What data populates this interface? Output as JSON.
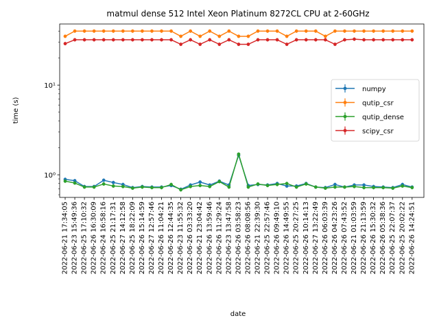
{
  "chart_data": {
    "type": "line",
    "title": "matmul dense 512 Intel Xeon Platinum 8272CL CPU at 2-60GHz",
    "xlabel": "date",
    "ylabel": "time (s)",
    "yscale": "log",
    "ylim": [
      0.56,
      48
    ],
    "yticks": [
      {
        "value": 1,
        "label": "10⁰"
      },
      {
        "value": 10,
        "label": "10¹"
      }
    ],
    "legend_position": "center-right",
    "categories": [
      "2022-06-21 17:34:05",
      "2022-06-23 15:49:36",
      "2022-06-25 17:10:32",
      "2022-06-26 16:30:09",
      "2022-06-24 16:58:16",
      "2022-06-25 21:17:31",
      "2022-06-27 14:12:58",
      "2022-06-25 18:22:09",
      "2022-06-26 15:14:59",
      "2022-06-27 12:57:46",
      "2022-06-26 11:04:21",
      "2022-06-26 12:44:35",
      "2022-06-23 11:55:32",
      "2022-06-26 03:33:20",
      "2022-06-21 23:04:42",
      "2022-06-26 13:59:46",
      "2022-06-26 11:29:24",
      "2022-06-23 13:47:58",
      "2022-06-26 03:58:23",
      "2022-06-26 08:08:56",
      "2022-06-21 22:39:30",
      "2022-06-25 22:57:46",
      "2022-06-26 09:49:10",
      "2022-06-26 14:49:55",
      "2022-06-25 20:27:25",
      "2022-06-26 10:14:13",
      "2022-06-27 13:22:49",
      "2022-06-26 06:03:39",
      "2022-06-26 04:23:26",
      "2022-06-26 07:43:52",
      "2022-06-21 01:03:59",
      "2022-06-26 21:13:59",
      "2022-06-26 15:30:32",
      "2022-06-26 05:38:36",
      "2022-06-25 22:07:37",
      "2022-06-25 20:02:22",
      "2022-06-26 14:24:51"
    ],
    "series": [
      {
        "name": "numpy",
        "color": "#1f77b4",
        "values": [
          0.89,
          0.86,
          0.74,
          0.74,
          0.87,
          0.82,
          0.78,
          0.72,
          0.74,
          0.73,
          0.73,
          0.76,
          0.69,
          0.77,
          0.83,
          0.77,
          0.85,
          0.77,
          1.65,
          0.76,
          0.78,
          0.77,
          0.8,
          0.75,
          0.75,
          0.8,
          0.73,
          0.72,
          0.78,
          0.73,
          0.77,
          0.77,
          0.74,
          0.73,
          0.72,
          0.78,
          0.73
        ]
      },
      {
        "name": "qutip_csr",
        "color": "#ff7f0e",
        "values": [
          35,
          40,
          40,
          40,
          40,
          40,
          40,
          40,
          40,
          40,
          40,
          40,
          35,
          40,
          35,
          40,
          35,
          40,
          35,
          35,
          40,
          40,
          40,
          35,
          40,
          40,
          40,
          35,
          40,
          40,
          40,
          40,
          40,
          40,
          40,
          40,
          40
        ]
      },
      {
        "name": "qutip_dense",
        "color": "#2ca02c",
        "values": [
          0.85,
          0.81,
          0.73,
          0.73,
          0.79,
          0.75,
          0.74,
          0.71,
          0.73,
          0.72,
          0.72,
          0.78,
          0.68,
          0.74,
          0.76,
          0.74,
          0.84,
          0.73,
          1.7,
          0.73,
          0.79,
          0.76,
          0.78,
          0.8,
          0.73,
          0.79,
          0.73,
          0.71,
          0.73,
          0.73,
          0.74,
          0.72,
          0.72,
          0.72,
          0.71,
          0.75,
          0.72
        ]
      },
      {
        "name": "scipy_csr",
        "color": "#d62728",
        "values": [
          29,
          32,
          32,
          32,
          32,
          32,
          32,
          32,
          32,
          32,
          32,
          32,
          28.5,
          32,
          28.5,
          32,
          28.5,
          32,
          28.5,
          28.5,
          32,
          32,
          32,
          28.5,
          32,
          32,
          32,
          32,
          28.5,
          32,
          32.5,
          32,
          32,
          32,
          32,
          32,
          32
        ]
      }
    ]
  }
}
